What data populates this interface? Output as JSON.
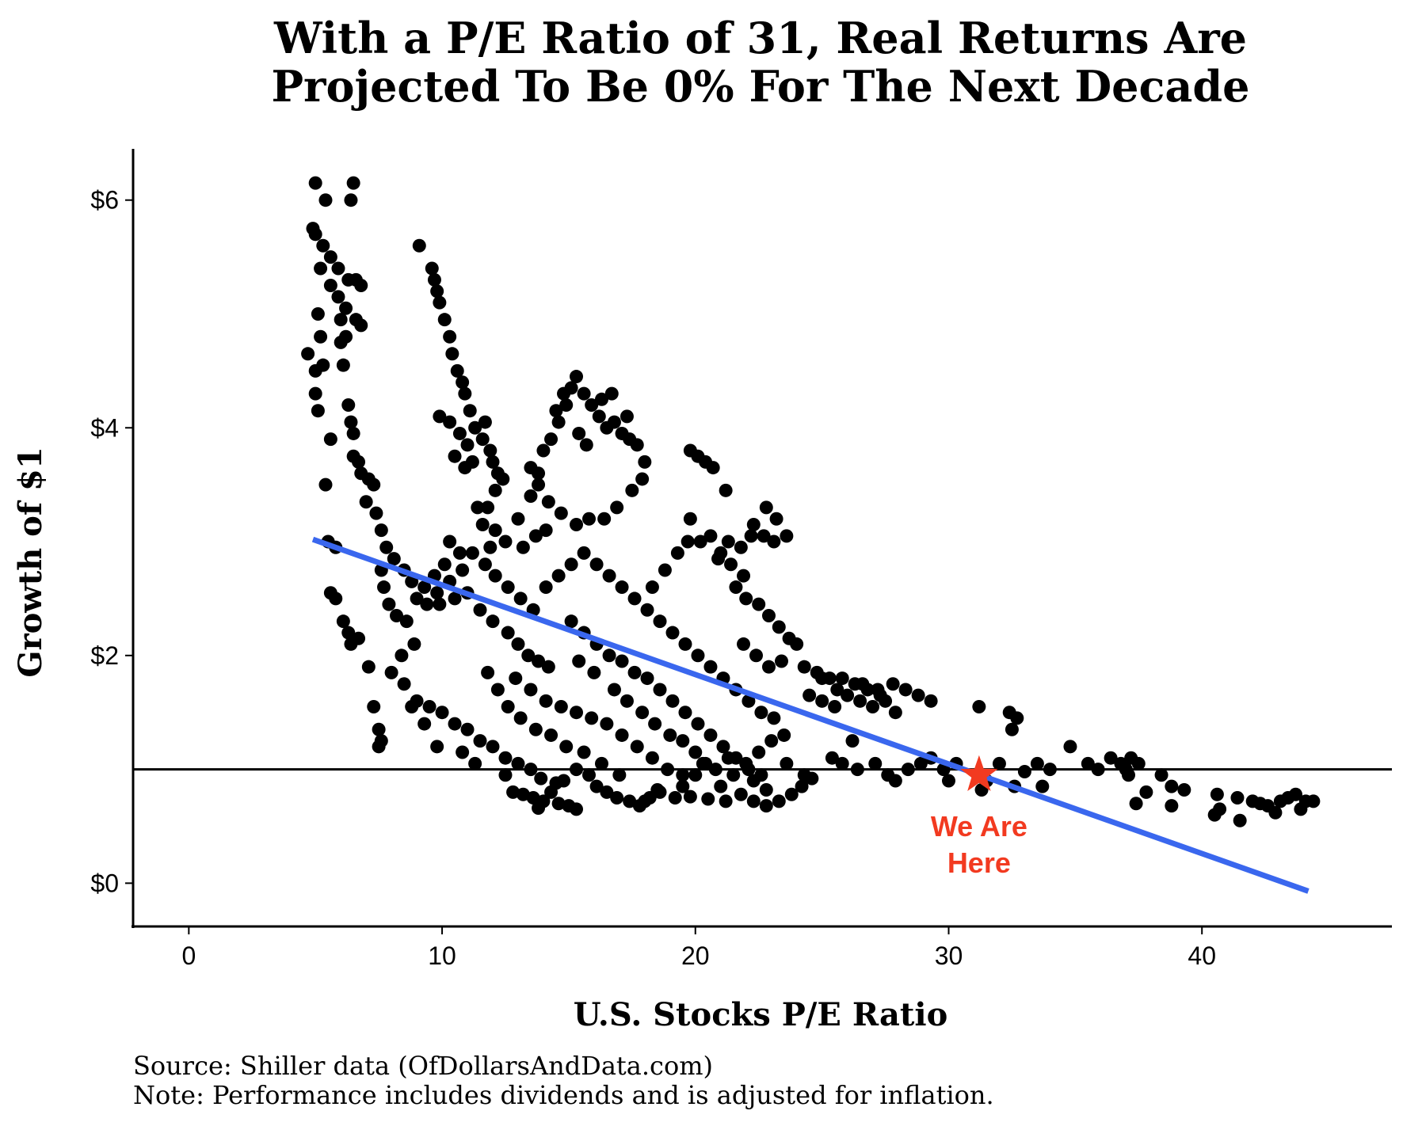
{
  "chart_data": {
    "type": "scatter",
    "title_lines": [
      "With a P/E Ratio of 31, Real Returns Are",
      "Projected To Be 0% For The Next Decade"
    ],
    "xlabel": "U.S. Stocks P/E Ratio",
    "ylabel": "Growth of $1",
    "xlim": [
      -2.2,
      47.5
    ],
    "ylim": [
      -0.38,
      6.45
    ],
    "x_ticks": [
      0,
      10,
      20,
      30,
      40
    ],
    "x_tick_labels": [
      "0",
      "10",
      "20",
      "30",
      "40"
    ],
    "y_ticks": [
      0,
      2,
      4,
      6
    ],
    "y_tick_labels": [
      "$0",
      "$2",
      "$4",
      "$6"
    ],
    "grid": false,
    "reference_line": {
      "y": 1.0,
      "color": "#000000"
    },
    "trend_line": {
      "x": [
        4.9,
        44.2
      ],
      "y": [
        3.02,
        -0.07
      ],
      "color": "#3a67ee"
    },
    "marker": {
      "x": 31.2,
      "y": 0.95,
      "color": "#f23a20",
      "label_lines": [
        "We Are",
        "Here"
      ]
    },
    "point_color": "#000000",
    "points": [
      [
        5.0,
        6.15
      ],
      [
        5.4,
        6.0
      ],
      [
        6.5,
        6.15
      ],
      [
        6.4,
        6.0
      ],
      [
        4.9,
        5.75
      ],
      [
        5.0,
        5.7
      ],
      [
        5.3,
        5.6
      ],
      [
        5.6,
        5.5
      ],
      [
        5.9,
        5.4
      ],
      [
        6.3,
        5.3
      ],
      [
        6.6,
        5.3
      ],
      [
        6.8,
        5.25
      ],
      [
        5.2,
        5.4
      ],
      [
        5.6,
        5.25
      ],
      [
        5.9,
        5.15
      ],
      [
        6.2,
        5.05
      ],
      [
        5.1,
        5.0
      ],
      [
        6.0,
        4.95
      ],
      [
        6.6,
        4.95
      ],
      [
        6.8,
        4.9
      ],
      [
        5.2,
        4.8
      ],
      [
        6.0,
        4.75
      ],
      [
        6.2,
        4.8
      ],
      [
        4.7,
        4.65
      ],
      [
        5.0,
        4.5
      ],
      [
        5.3,
        4.55
      ],
      [
        6.1,
        4.55
      ],
      [
        5.0,
        4.3
      ],
      [
        5.1,
        4.15
      ],
      [
        6.3,
        4.2
      ],
      [
        6.4,
        4.05
      ],
      [
        6.5,
        3.95
      ],
      [
        5.6,
        3.9
      ],
      [
        6.5,
        3.75
      ],
      [
        6.7,
        3.7
      ],
      [
        6.8,
        3.6
      ],
      [
        7.1,
        3.55
      ],
      [
        7.3,
        3.5
      ],
      [
        5.4,
        3.5
      ],
      [
        7.0,
        3.35
      ],
      [
        7.4,
        3.25
      ],
      [
        7.6,
        3.1
      ],
      [
        5.5,
        3.0
      ],
      [
        5.8,
        2.95
      ],
      [
        7.8,
        2.95
      ],
      [
        8.1,
        2.85
      ],
      [
        8.5,
        2.75
      ],
      [
        8.8,
        2.65
      ],
      [
        7.6,
        2.75
      ],
      [
        7.7,
        2.6
      ],
      [
        7.9,
        2.45
      ],
      [
        8.2,
        2.35
      ],
      [
        5.6,
        2.55
      ],
      [
        5.8,
        2.5
      ],
      [
        6.1,
        2.3
      ],
      [
        6.3,
        2.2
      ],
      [
        6.7,
        2.15
      ],
      [
        6.4,
        2.1
      ],
      [
        7.1,
        1.9
      ],
      [
        7.3,
        1.55
      ],
      [
        7.5,
        1.35
      ],
      [
        7.6,
        1.25
      ],
      [
        7.5,
        1.2
      ],
      [
        9.1,
        5.6
      ],
      [
        9.6,
        5.4
      ],
      [
        9.7,
        5.3
      ],
      [
        9.8,
        5.2
      ],
      [
        9.9,
        5.1
      ],
      [
        10.1,
        4.95
      ],
      [
        10.3,
        4.8
      ],
      [
        10.4,
        4.65
      ],
      [
        10.6,
        4.5
      ],
      [
        10.8,
        4.4
      ],
      [
        10.9,
        4.3
      ],
      [
        11.1,
        4.15
      ],
      [
        11.3,
        4.0
      ],
      [
        11.6,
        3.9
      ],
      [
        11.9,
        3.8
      ],
      [
        12.0,
        3.7
      ],
      [
        11.7,
        4.05
      ],
      [
        11.2,
        3.7
      ],
      [
        11.0,
        3.85
      ],
      [
        10.7,
        3.95
      ],
      [
        10.3,
        4.05
      ],
      [
        9.9,
        4.1
      ],
      [
        10.5,
        3.75
      ],
      [
        10.9,
        3.65
      ],
      [
        12.2,
        3.6
      ],
      [
        12.4,
        3.55
      ],
      [
        12.1,
        3.45
      ],
      [
        11.8,
        3.3
      ],
      [
        11.4,
        3.3
      ],
      [
        11.6,
        3.15
      ],
      [
        12.1,
        3.1
      ],
      [
        12.5,
        3.0
      ],
      [
        11.9,
        2.95
      ],
      [
        10.3,
        3.0
      ],
      [
        10.7,
        2.9
      ],
      [
        10.1,
        2.8
      ],
      [
        9.7,
        2.7
      ],
      [
        9.3,
        2.6
      ],
      [
        9.0,
        2.5
      ],
      [
        9.4,
        2.45
      ],
      [
        9.9,
        2.45
      ],
      [
        10.5,
        2.5
      ],
      [
        11.0,
        2.55
      ],
      [
        11.5,
        2.4
      ],
      [
        12.0,
        2.3
      ],
      [
        12.6,
        2.2
      ],
      [
        13.0,
        2.1
      ],
      [
        13.4,
        2.0
      ],
      [
        13.8,
        1.95
      ],
      [
        14.2,
        1.9
      ],
      [
        8.6,
        2.3
      ],
      [
        8.9,
        2.1
      ],
      [
        8.4,
        2.0
      ],
      [
        8.0,
        1.85
      ],
      [
        8.5,
        1.75
      ],
      [
        9.0,
        1.6
      ],
      [
        9.5,
        1.55
      ],
      [
        10.0,
        1.5
      ],
      [
        10.5,
        1.4
      ],
      [
        11.0,
        1.35
      ],
      [
        11.5,
        1.25
      ],
      [
        12.0,
        1.2
      ],
      [
        12.5,
        1.1
      ],
      [
        13.0,
        1.05
      ],
      [
        13.5,
        1.0
      ],
      [
        12.5,
        0.95
      ],
      [
        11.3,
        1.05
      ],
      [
        10.8,
        1.15
      ],
      [
        9.8,
        1.2
      ],
      [
        9.3,
        1.4
      ],
      [
        8.8,
        1.55
      ],
      [
        12.8,
        0.8
      ],
      [
        13.2,
        0.78
      ],
      [
        13.6,
        0.75
      ],
      [
        14.0,
        0.72
      ],
      [
        14.3,
        0.8
      ],
      [
        14.6,
        0.7
      ],
      [
        15.0,
        0.68
      ],
      [
        15.3,
        0.65
      ],
      [
        13.8,
        0.66
      ],
      [
        14.5,
        0.88
      ],
      [
        13.9,
        0.92
      ],
      [
        14.8,
        0.9
      ],
      [
        15.3,
        1.0
      ],
      [
        15.8,
        0.95
      ],
      [
        16.1,
        0.85
      ],
      [
        16.5,
        0.8
      ],
      [
        16.9,
        0.75
      ],
      [
        17.4,
        0.72
      ],
      [
        17.8,
        0.68
      ],
      [
        18.2,
        0.75
      ],
      [
        18.6,
        0.8
      ],
      [
        17.0,
        0.95
      ],
      [
        16.3,
        1.05
      ],
      [
        15.6,
        1.15
      ],
      [
        14.9,
        1.2
      ],
      [
        14.3,
        1.3
      ],
      [
        13.7,
        1.35
      ],
      [
        13.1,
        1.45
      ],
      [
        12.6,
        1.55
      ],
      [
        12.2,
        1.7
      ],
      [
        11.8,
        1.85
      ],
      [
        12.9,
        1.8
      ],
      [
        13.5,
        1.7
      ],
      [
        14.1,
        1.6
      ],
      [
        14.7,
        1.55
      ],
      [
        15.3,
        1.5
      ],
      [
        15.9,
        1.45
      ],
      [
        16.5,
        1.4
      ],
      [
        17.1,
        1.3
      ],
      [
        17.7,
        1.2
      ],
      [
        18.3,
        1.1
      ],
      [
        18.9,
        1.0
      ],
      [
        19.5,
        0.95
      ],
      [
        14.1,
        2.6
      ],
      [
        14.6,
        2.7
      ],
      [
        15.1,
        2.8
      ],
      [
        15.6,
        2.9
      ],
      [
        16.1,
        2.8
      ],
      [
        16.6,
        2.7
      ],
      [
        17.1,
        2.6
      ],
      [
        17.6,
        2.5
      ],
      [
        18.1,
        2.4
      ],
      [
        18.6,
        2.3
      ],
      [
        19.1,
        2.2
      ],
      [
        19.6,
        2.1
      ],
      [
        20.1,
        2.0
      ],
      [
        20.6,
        1.9
      ],
      [
        21.1,
        1.8
      ],
      [
        21.6,
        1.7
      ],
      [
        22.1,
        1.6
      ],
      [
        22.6,
        1.5
      ],
      [
        23.1,
        1.45
      ],
      [
        13.6,
        2.4
      ],
      [
        13.1,
        2.5
      ],
      [
        12.6,
        2.6
      ],
      [
        12.1,
        2.7
      ],
      [
        11.7,
        2.8
      ],
      [
        11.2,
        2.9
      ],
      [
        10.8,
        2.75
      ],
      [
        10.3,
        2.65
      ],
      [
        9.8,
        2.55
      ],
      [
        15.1,
        2.3
      ],
      [
        15.6,
        2.2
      ],
      [
        16.1,
        2.1
      ],
      [
        16.6,
        2.0
      ],
      [
        17.1,
        1.95
      ],
      [
        17.6,
        1.85
      ],
      [
        18.1,
        1.8
      ],
      [
        18.6,
        1.7
      ],
      [
        19.1,
        1.6
      ],
      [
        19.6,
        1.5
      ],
      [
        20.1,
        1.4
      ],
      [
        20.6,
        1.3
      ],
      [
        21.1,
        1.2
      ],
      [
        21.6,
        1.1
      ],
      [
        22.1,
        1.0
      ],
      [
        22.6,
        0.95
      ],
      [
        15.4,
        1.95
      ],
      [
        16.0,
        1.85
      ],
      [
        16.8,
        1.7
      ],
      [
        17.3,
        1.6
      ],
      [
        17.9,
        1.5
      ],
      [
        18.4,
        1.4
      ],
      [
        19.0,
        1.3
      ],
      [
        19.5,
        1.25
      ],
      [
        20.0,
        1.15
      ],
      [
        20.4,
        1.05
      ],
      [
        13.0,
        3.2
      ],
      [
        13.5,
        3.4
      ],
      [
        13.8,
        3.6
      ],
      [
        14.0,
        3.8
      ],
      [
        14.3,
        3.9
      ],
      [
        14.6,
        4.05
      ],
      [
        14.9,
        4.2
      ],
      [
        15.1,
        4.35
      ],
      [
        15.3,
        4.45
      ],
      [
        15.6,
        4.3
      ],
      [
        15.9,
        4.2
      ],
      [
        16.2,
        4.1
      ],
      [
        16.5,
        4.0
      ],
      [
        16.8,
        4.05
      ],
      [
        17.1,
        3.95
      ],
      [
        17.4,
        3.9
      ],
      [
        17.7,
        3.85
      ],
      [
        18.0,
        3.7
      ],
      [
        17.9,
        3.55
      ],
      [
        17.5,
        3.45
      ],
      [
        16.9,
        3.3
      ],
      [
        16.4,
        3.2
      ],
      [
        15.8,
        3.2
      ],
      [
        15.3,
        3.15
      ],
      [
        14.7,
        3.25
      ],
      [
        14.2,
        3.35
      ],
      [
        13.8,
        3.5
      ],
      [
        13.5,
        3.65
      ],
      [
        15.4,
        3.95
      ],
      [
        15.7,
        3.85
      ],
      [
        16.3,
        4.25
      ],
      [
        16.7,
        4.3
      ],
      [
        17.3,
        4.1
      ],
      [
        13.2,
        2.95
      ],
      [
        13.7,
        3.05
      ],
      [
        14.1,
        3.1
      ],
      [
        14.8,
        4.3
      ],
      [
        14.5,
        4.15
      ],
      [
        19.8,
        3.8
      ],
      [
        20.1,
        3.75
      ],
      [
        20.4,
        3.7
      ],
      [
        20.7,
        3.65
      ],
      [
        21.2,
        3.45
      ],
      [
        19.8,
        3.2
      ],
      [
        20.2,
        3.0
      ],
      [
        20.6,
        3.05
      ],
      [
        21.0,
        2.9
      ],
      [
        21.4,
        2.8
      ],
      [
        21.9,
        2.7
      ],
      [
        22.3,
        3.15
      ],
      [
        22.8,
        3.3
      ],
      [
        23.2,
        3.2
      ],
      [
        23.6,
        3.05
      ],
      [
        23.1,
        3.0
      ],
      [
        22.7,
        3.05
      ],
      [
        22.2,
        3.05
      ],
      [
        21.8,
        2.95
      ],
      [
        21.3,
        3.0
      ],
      [
        20.9,
        2.85
      ],
      [
        21.6,
        2.6
      ],
      [
        22.0,
        2.5
      ],
      [
        22.5,
        2.45
      ],
      [
        22.9,
        2.35
      ],
      [
        23.3,
        2.25
      ],
      [
        23.7,
        2.15
      ],
      [
        24.0,
        2.1
      ],
      [
        23.4,
        1.95
      ],
      [
        22.9,
        1.9
      ],
      [
        22.4,
        2.0
      ],
      [
        21.9,
        2.1
      ],
      [
        19.7,
        3.0
      ],
      [
        19.3,
        2.9
      ],
      [
        18.8,
        2.75
      ],
      [
        18.3,
        2.6
      ],
      [
        18.0,
        0.72
      ],
      [
        18.5,
        0.82
      ],
      [
        19.2,
        0.75
      ],
      [
        19.8,
        0.76
      ],
      [
        20.5,
        0.74
      ],
      [
        21.2,
        0.72
      ],
      [
        21.8,
        0.78
      ],
      [
        22.3,
        0.72
      ],
      [
        22.8,
        0.68
      ],
      [
        23.3,
        0.72
      ],
      [
        23.8,
        0.78
      ],
      [
        24.2,
        0.85
      ],
      [
        24.6,
        0.92
      ],
      [
        21.0,
        0.85
      ],
      [
        21.5,
        0.95
      ],
      [
        22.0,
        1.05
      ],
      [
        22.5,
        1.15
      ],
      [
        23.0,
        1.25
      ],
      [
        23.5,
        1.3
      ],
      [
        22.3,
        0.9
      ],
      [
        22.8,
        0.82
      ],
      [
        20.8,
        1.0
      ],
      [
        21.3,
        1.1
      ],
      [
        23.6,
        1.05
      ],
      [
        24.3,
        0.95
      ],
      [
        19.5,
        0.85
      ],
      [
        20.0,
        0.95
      ],
      [
        20.3,
        1.05
      ],
      [
        24.3,
        1.9
      ],
      [
        24.8,
        1.85
      ],
      [
        25.3,
        1.8
      ],
      [
        25.8,
        1.8
      ],
      [
        26.3,
        1.75
      ],
      [
        26.8,
        1.7
      ],
      [
        27.3,
        1.65
      ],
      [
        27.8,
        1.75
      ],
      [
        28.3,
        1.7
      ],
      [
        28.8,
        1.65
      ],
      [
        29.3,
        1.6
      ],
      [
        24.5,
        1.65
      ],
      [
        25.0,
        1.6
      ],
      [
        25.5,
        1.55
      ],
      [
        26.0,
        1.65
      ],
      [
        26.5,
        1.6
      ],
      [
        27.0,
        1.55
      ],
      [
        27.5,
        1.6
      ],
      [
        27.9,
        1.5
      ],
      [
        26.2,
        1.25
      ],
      [
        25.4,
        1.1
      ],
      [
        25.8,
        1.05
      ],
      [
        26.4,
        1.0
      ],
      [
        27.1,
        1.05
      ],
      [
        27.6,
        0.95
      ],
      [
        27.9,
        0.9
      ],
      [
        28.4,
        1.0
      ],
      [
        28.9,
        1.05
      ],
      [
        29.3,
        1.1
      ],
      [
        29.8,
        1.0
      ],
      [
        30.3,
        1.05
      ],
      [
        30.0,
        0.9
      ],
      [
        25.0,
        1.8
      ],
      [
        25.6,
        1.7
      ],
      [
        26.6,
        1.75
      ],
      [
        27.2,
        1.7
      ],
      [
        31.2,
        1.55
      ],
      [
        32.4,
        1.5
      ],
      [
        32.7,
        1.45
      ],
      [
        32.5,
        1.35
      ],
      [
        32.0,
        1.05
      ],
      [
        32.6,
        0.85
      ],
      [
        33.0,
        0.98
      ],
      [
        33.5,
        1.05
      ],
      [
        34.0,
        1.0
      ],
      [
        33.7,
        0.85
      ],
      [
        34.8,
        1.2
      ],
      [
        35.5,
        1.05
      ],
      [
        35.9,
        1.0
      ],
      [
        36.4,
        1.1
      ],
      [
        36.8,
        1.05
      ],
      [
        37.0,
        1.0
      ],
      [
        37.2,
        1.1
      ],
      [
        37.5,
        1.05
      ],
      [
        37.1,
        0.95
      ],
      [
        37.4,
        0.7
      ],
      [
        37.8,
        0.8
      ],
      [
        38.4,
        0.95
      ],
      [
        38.8,
        0.85
      ],
      [
        39.3,
        0.82
      ],
      [
        38.8,
        0.68
      ],
      [
        40.6,
        0.78
      ],
      [
        40.5,
        0.6
      ],
      [
        40.7,
        0.65
      ],
      [
        41.4,
        0.75
      ],
      [
        41.5,
        0.55
      ],
      [
        42.0,
        0.72
      ],
      [
        42.3,
        0.7
      ],
      [
        42.6,
        0.68
      ],
      [
        42.9,
        0.62
      ],
      [
        43.1,
        0.72
      ],
      [
        43.4,
        0.75
      ],
      [
        43.7,
        0.78
      ],
      [
        43.9,
        0.65
      ],
      [
        44.1,
        0.72
      ],
      [
        44.4,
        0.72
      ],
      [
        31.3,
        0.82
      ],
      [
        31.5,
        0.9
      ]
    ]
  },
  "source_note": "Source:  Shiller data (OfDollarsAndData.com)",
  "performance_note": "Note: Performance includes dividends and is adjusted for inflation."
}
